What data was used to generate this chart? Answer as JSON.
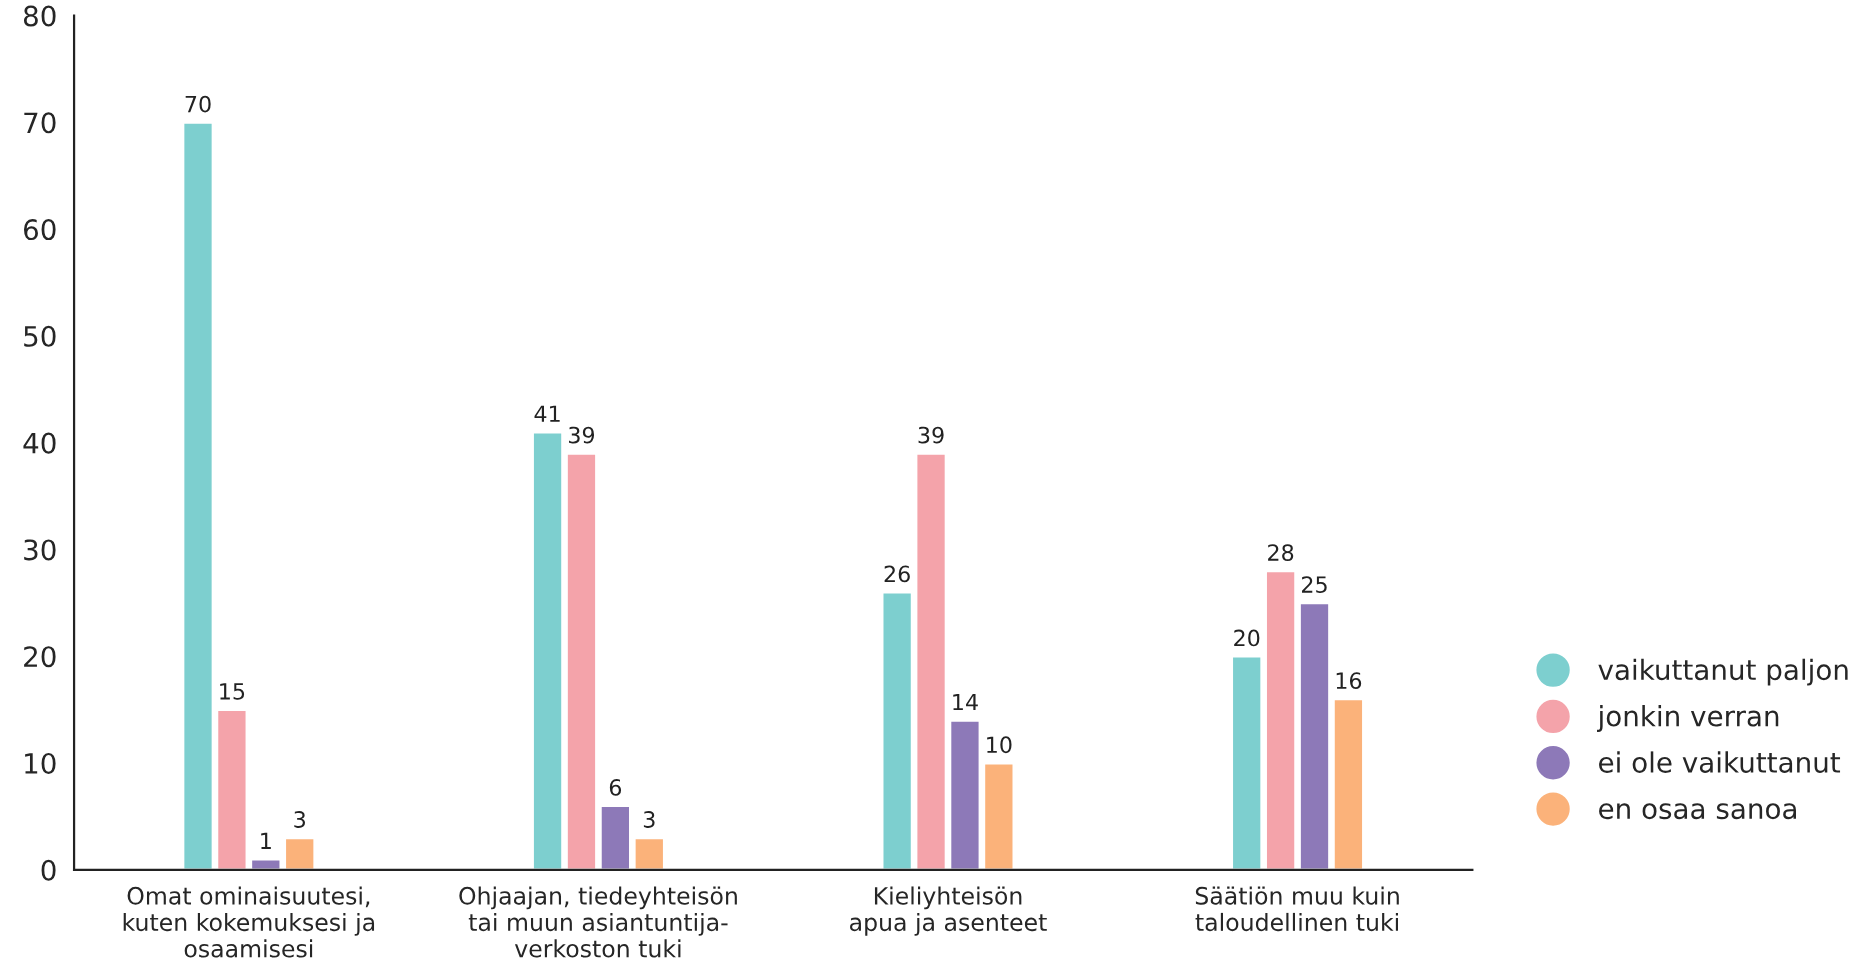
{
  "chart_data": {
    "type": "bar",
    "categories": [
      "Omat ominaisuutesi,\nkuten kokemuksesi ja\nosaamisesi",
      "Ohjaajan, tiedeyhteisön\ntai muun asiantuntija-\nverkoston tuki",
      "Kieliyhteisön\napua ja asenteet",
      "Säätiön muu kuin\ntaloudellinen tuki"
    ],
    "series": [
      {
        "name": "vaikuttanut paljon",
        "color": "#7dcfcf",
        "values": [
          70,
          41,
          26,
          20
        ]
      },
      {
        "name": "jonkin verran",
        "color": "#f4a3aa",
        "values": [
          15,
          39,
          39,
          28
        ]
      },
      {
        "name": "ei ole vaikuttanut",
        "color": "#8d79b8",
        "values": [
          1,
          6,
          14,
          25
        ]
      },
      {
        "name": "en osaa sanoa",
        "color": "#fbb27a",
        "values": [
          3,
          3,
          10,
          16
        ]
      }
    ],
    "ylim": [
      0,
      80
    ],
    "yticks": [
      0,
      10,
      20,
      30,
      40,
      50,
      60,
      70,
      80
    ],
    "data_labels": true,
    "grid": false,
    "legend": "right",
    "marker": "circle"
  }
}
